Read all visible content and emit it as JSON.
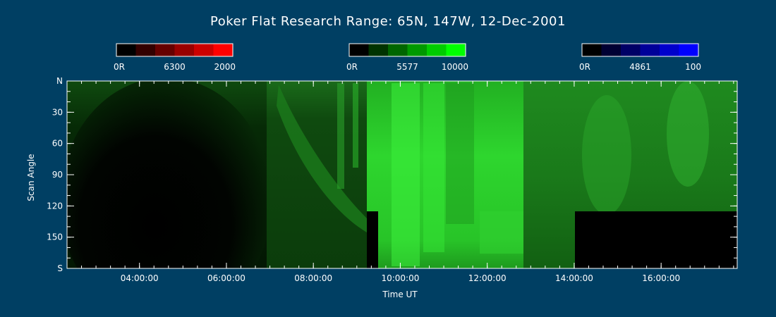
{
  "chart_data": {
    "type": "heatmap",
    "title": "Poker Flat Research Range: 65N, 147W, 12-Dec-2001",
    "xlabel": "Time UT",
    "ylabel": "Scan Angle",
    "x_range": [
      "02:20:00",
      "17:45:00"
    ],
    "x_ticks": [
      "04:00:00",
      "06:00:00",
      "08:00:00",
      "10:00:00",
      "12:00:00",
      "14:00:00",
      "16:00:00"
    ],
    "y_ticks": [
      "N",
      "30",
      "60",
      "90",
      "120",
      "150",
      "S"
    ],
    "y_range": [
      0,
      180
    ],
    "colorbars": [
      {
        "wavelength": "6300",
        "min_label": "0R",
        "max_label": "2000",
        "color": "#ff0000",
        "steps": [
          "#000000",
          "#330000",
          "#660000",
          "#990000",
          "#cc0000",
          "#ff0000"
        ]
      },
      {
        "wavelength": "5577",
        "min_label": "0R",
        "max_label": "10000",
        "color": "#00ff00",
        "steps": [
          "#000000",
          "#003300",
          "#006600",
          "#009900",
          "#00cc00",
          "#00ff00"
        ]
      },
      {
        "wavelength": "4861",
        "min_label": "0R",
        "max_label": "100",
        "color": "#0000ff",
        "steps": [
          "#000000",
          "#000033",
          "#000066",
          "#000099",
          "#0000cc",
          "#0000ff"
        ]
      }
    ],
    "segments": [
      {
        "start": "02:20:00",
        "end": "06:55:00",
        "description": "dark, weak green at top"
      },
      {
        "start": "06:55:00",
        "end": "09:15:00",
        "description": "dim green with bright arcs near top"
      },
      {
        "start": "09:15:00",
        "end": "09:30:00",
        "description": "missing data below 125 deg"
      },
      {
        "start": "09:30:00",
        "end": "12:45:00",
        "description": "bright green aurora"
      },
      {
        "start": "12:45:00",
        "end": "14:00:00",
        "description": "moderate green"
      },
      {
        "start": "14:00:00",
        "end": "17:45:00",
        "description": "green, missing data below 125 deg"
      }
    ]
  },
  "colors": {
    "background": "#003f63",
    "text": "#ffffff"
  }
}
